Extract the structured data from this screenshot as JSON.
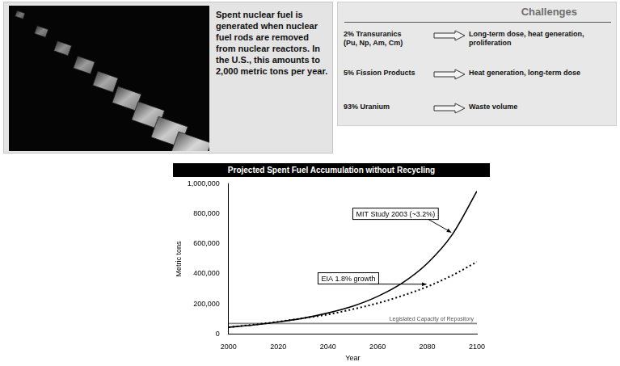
{
  "intro": {
    "text": "Spent nuclear fuel is generated when nuclear fuel rods are removed from nuclear reactors. In the U.S., this amounts to 2,000 metric tons per year."
  },
  "challenges": {
    "title": "Challenges",
    "rows": [
      {
        "component": "2% Transuranics",
        "detail": "(Pu, Np, Am, Cm)",
        "challenge": "Long-term dose, heat generation, proliferation"
      },
      {
        "component": "5% Fission Products",
        "challenge": "Heat generation, long-term dose"
      },
      {
        "component": "93% Uranium",
        "challenge": "Waste volume"
      }
    ]
  },
  "chart_data": {
    "type": "line",
    "title": "Projected Spent Fuel Accumulation without Recycling",
    "x_label": "Year",
    "y_label": "Metric tons",
    "x": [
      2000,
      2010,
      2020,
      2030,
      2040,
      2050,
      2060,
      2070,
      2080,
      2090,
      2100
    ],
    "series": [
      {
        "name": "MIT Study 2003 (~3.2%)",
        "color": "#000000",
        "line_style": "solid",
        "values": [
          45000,
          60000,
          80000,
          105000,
          140000,
          185000,
          250000,
          340000,
          470000,
          660000,
          950000
        ]
      },
      {
        "name": "EIA 1.8% growth",
        "color": "#000000",
        "line_style": "dotted",
        "values": [
          45000,
          62000,
          82000,
          105000,
          130000,
          165000,
          205000,
          255000,
          315000,
          390000,
          480000
        ]
      },
      {
        "name": "Legislated Capacity of Repository",
        "color": "#888888",
        "line_style": "solid",
        "values": [
          70000,
          70000,
          70000,
          70000,
          70000,
          70000,
          70000,
          70000,
          70000,
          70000,
          70000
        ]
      }
    ],
    "xlim": [
      2000,
      2100
    ],
    "xticks": [
      2000,
      2020,
      2040,
      2060,
      2080,
      2100
    ],
    "ylim": [
      0,
      1000000
    ],
    "yticks": [
      0,
      {
        "value": 200000,
        "label": "200,000"
      },
      {
        "value": 400000,
        "label": "400,000"
      },
      {
        "value": 600000,
        "label": "600,000"
      },
      {
        "value": 800000,
        "label": "800,000"
      },
      {
        "value": 1000000,
        "label": "1,000,000"
      }
    ],
    "grid": false
  }
}
